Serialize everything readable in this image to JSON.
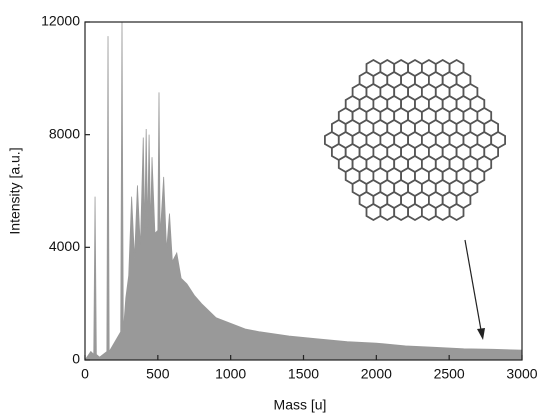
{
  "chart_data": {
    "type": "area",
    "x_label": "Mass [u]",
    "y_label": "Intensity [a.u.]",
    "x": [
      0,
      40,
      60,
      69,
      78,
      100,
      150,
      158,
      166,
      200,
      245,
      254,
      263,
      280,
      300,
      320,
      340,
      360,
      380,
      400,
      410,
      420,
      430,
      440,
      450,
      460,
      480,
      500,
      508,
      516,
      540,
      560,
      580,
      600,
      630,
      660,
      700,
      750,
      800,
      900,
      1000,
      1100,
      1200,
      1400,
      1600,
      1800,
      2000,
      2200,
      2400,
      2600,
      2800,
      3000
    ],
    "values": [
      0,
      300,
      200,
      5800,
      200,
      100,
      300,
      11500,
      300,
      600,
      1000,
      12000,
      1000,
      2200,
      3000,
      5800,
      3600,
      6200,
      4000,
      7900,
      4600,
      8200,
      4700,
      8000,
      4700,
      7200,
      4500,
      4600,
      9500,
      4400,
      6500,
      3900,
      5200,
      3500,
      3800,
      2900,
      2700,
      2300,
      2000,
      1500,
      1300,
      1100,
      1000,
      850,
      750,
      650,
      600,
      500,
      450,
      400,
      380,
      350
    ],
    "color": "#999999",
    "xlim": [
      0,
      3000
    ],
    "xticks": [
      0,
      500,
      1000,
      1500,
      2000,
      2500,
      3000
    ],
    "ylim": [
      0,
      12000
    ],
    "yticks": [
      0,
      4000,
      8000,
      12000
    ]
  }
}
